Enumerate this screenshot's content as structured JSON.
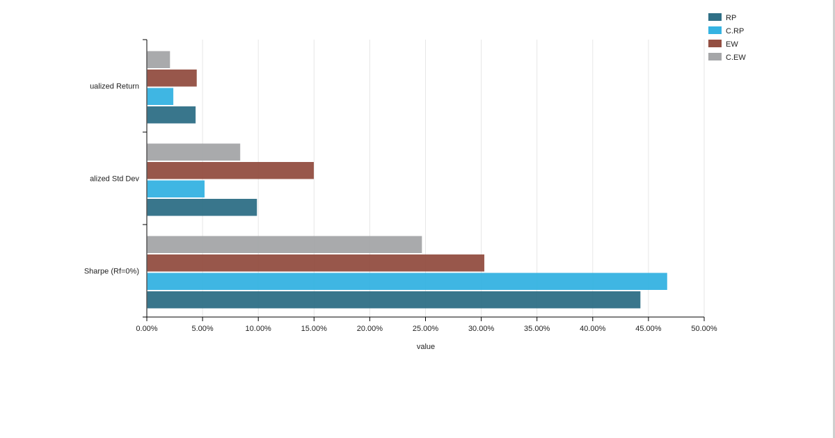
{
  "chart_data": {
    "type": "bar",
    "orientation": "horizontal",
    "title": "",
    "xlabel": "value",
    "ylabel": "",
    "xlim": [
      0,
      0.5
    ],
    "x_tick_values": [
      0,
      0.05,
      0.1,
      0.15,
      0.2,
      0.25,
      0.3,
      0.35,
      0.4,
      0.45,
      0.5
    ],
    "x_tick_labels": [
      "0.00%",
      "5.00%",
      "10.00%",
      "15.00%",
      "20.00%",
      "25.00%",
      "30.00%",
      "35.00%",
      "40.00%",
      "45.00%",
      "50.00%"
    ],
    "grid": "vertical",
    "legend_position": "top-right",
    "categories": [
      "ualized Return",
      "alized Std Dev",
      "Sharpe (Rf=0%)"
    ],
    "series": [
      {
        "name": "RP",
        "color": "#2f6f86",
        "values": [
          0.043,
          0.098,
          0.442
        ]
      },
      {
        "name": "C.RP",
        "color": "#35b3e2",
        "values": [
          0.023,
          0.051,
          0.466
        ]
      },
      {
        "name": "EW",
        "color": "#934f42",
        "values": [
          0.044,
          0.149,
          0.302
        ]
      },
      {
        "name": "C.EW",
        "color": "#a5a6a8",
        "values": [
          0.02,
          0.083,
          0.246
        ]
      }
    ]
  }
}
